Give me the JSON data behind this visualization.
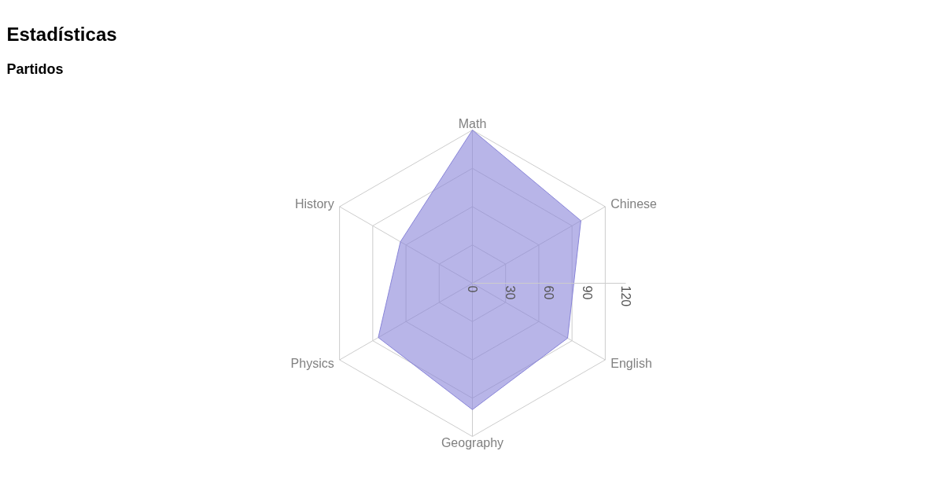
{
  "chart_data": {
    "type": "radar",
    "title": "Estadísticas",
    "subtitle": "Partidos",
    "categories": [
      "Math",
      "Chinese",
      "English",
      "Geography",
      "Physics",
      "History"
    ],
    "series": [
      {
        "color": "#8884d8",
        "values": [
          120,
          98,
          86,
          99,
          85,
          65
        ]
      }
    ],
    "ylim": [
      0,
      120
    ],
    "yticks": [
      0,
      30,
      60,
      90,
      120
    ],
    "grid": true
  }
}
